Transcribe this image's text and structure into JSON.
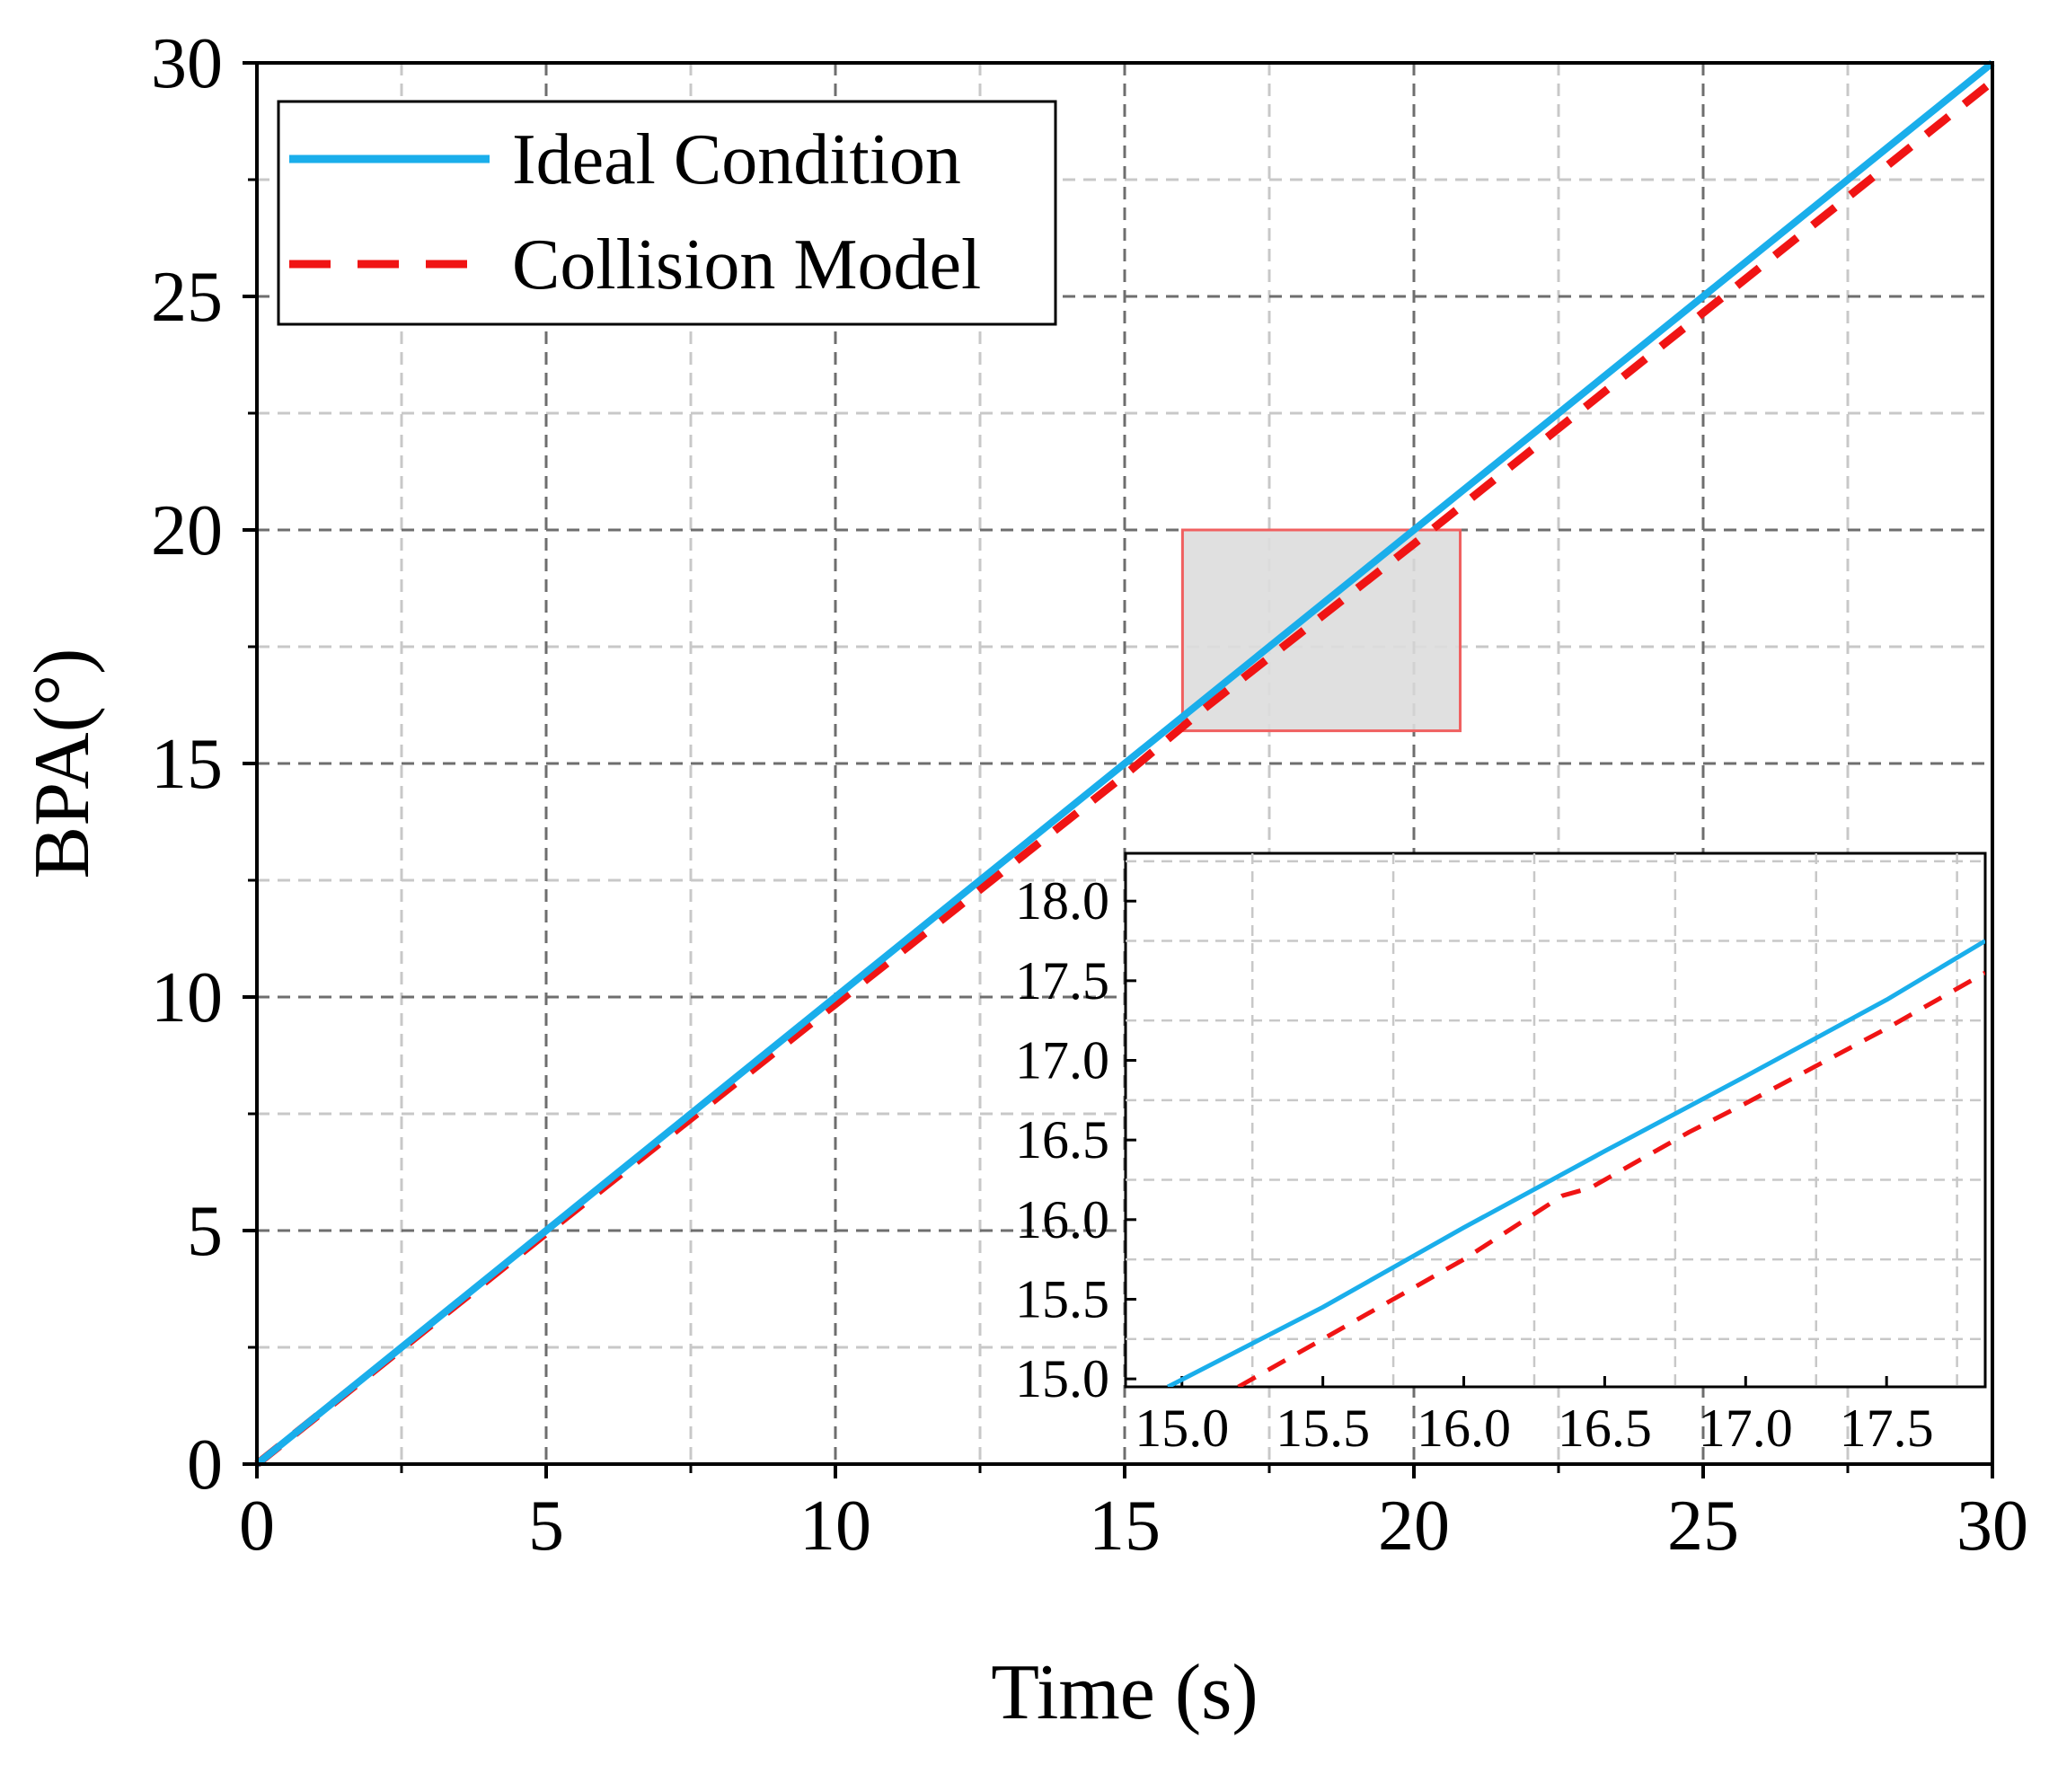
{
  "chart_data": [
    {
      "type": "line",
      "xlabel": "Time (s)",
      "ylabel": "BPA(°)",
      "xlim": [
        0,
        30
      ],
      "ylim": [
        0,
        30
      ],
      "xticks": [
        0,
        5,
        10,
        15,
        20,
        25,
        30
      ],
      "yticks": [
        0,
        5,
        10,
        15,
        20,
        25,
        30
      ],
      "xtick_labels": [
        "0",
        "5",
        "10",
        "15",
        "20",
        "25",
        "30"
      ],
      "ytick_labels": [
        "0",
        "5",
        "10",
        "15",
        "20",
        "25",
        "30"
      ],
      "grid": true,
      "legend_position": "top-left",
      "series": [
        {
          "name": "Ideal Condition",
          "color": "#1AAEEB",
          "style": "solid",
          "x": [
            0,
            5,
            10,
            15,
            20,
            25,
            30
          ],
          "y": [
            0,
            5,
            10,
            15,
            20,
            25,
            30
          ]
        },
        {
          "name": "Collision Model",
          "color": "#F01414",
          "style": "dashed",
          "x": [
            0,
            5,
            10,
            15,
            16.4,
            20,
            25,
            30
          ],
          "y": [
            0,
            4.95,
            9.85,
            14.75,
            16.2,
            19.7,
            24.65,
            29.6
          ]
        }
      ],
      "highlight_region": {
        "x": [
          16.0,
          20.8
        ],
        "y": [
          15.7,
          20.0
        ],
        "color": "#DDDDDD",
        "border": "#F06060"
      }
    },
    {
      "type": "line",
      "role": "inset",
      "xlim": [
        14.8,
        17.85
      ],
      "ylim": [
        14.95,
        18.3
      ],
      "xticks": [
        15.0,
        15.5,
        16.0,
        16.5,
        17.0,
        17.5
      ],
      "yticks": [
        15.0,
        15.5,
        16.0,
        16.5,
        17.0,
        17.5,
        18.0
      ],
      "xtick_labels": [
        "15.0",
        "15.5",
        "16.0",
        "16.5",
        "17.0",
        "17.5"
      ],
      "ytick_labels": [
        "15.0",
        "15.5",
        "16.0",
        "16.5",
        "17.0",
        "17.5",
        "18.0"
      ],
      "grid": true,
      "series": [
        {
          "name": "Ideal Condition",
          "color": "#1AAEEB",
          "style": "solid",
          "x": [
            14.95,
            15.5,
            16.0,
            16.5,
            17.0,
            17.5,
            17.85
          ],
          "y": [
            14.95,
            15.45,
            15.95,
            16.43,
            16.9,
            17.38,
            17.75
          ]
        },
        {
          "name": "Collision Model",
          "color": "#F01414",
          "style": "dashed",
          "x": [
            15.2,
            15.5,
            16.0,
            16.35,
            16.45,
            16.8,
            17.0,
            17.5,
            17.85
          ],
          "y": [
            14.95,
            15.25,
            15.75,
            16.15,
            16.2,
            16.55,
            16.73,
            17.2,
            17.55
          ]
        }
      ]
    }
  ]
}
